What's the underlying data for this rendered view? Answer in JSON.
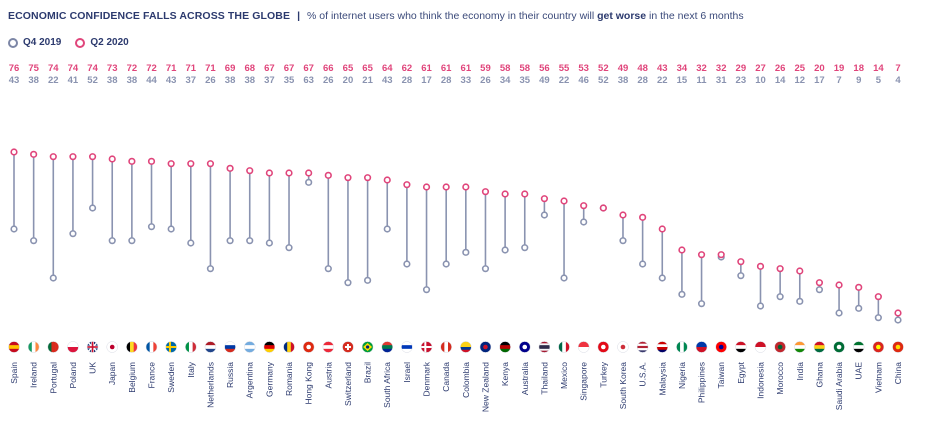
{
  "title": {
    "main": "ECONOMIC CONFIDENCE FALLS ACROSS THE GLOBE",
    "separator": "|",
    "subtitle_before": "% of internet users who think the economy in their country will",
    "subtitle_bold": "get worse",
    "subtitle_after": "in the next 6 months"
  },
  "legend": [
    {
      "label": "Q4 2019",
      "color": "#7c86a6"
    },
    {
      "label": "Q2 2020",
      "color": "#e0457b"
    }
  ],
  "colors": {
    "q4": "#8a93b0",
    "q2": "#e0457b",
    "stem": "#8a93b0",
    "text": "#2c3a6e"
  },
  "chart_data": {
    "type": "dumbbell",
    "title": "ECONOMIC CONFIDENCE FALLS ACROSS THE GLOBE",
    "ylim": [
      0,
      90
    ],
    "series": [
      {
        "name": "Q2 2020",
        "values": [
          76,
          75,
          74,
          74,
          74,
          73,
          72,
          72,
          71,
          71,
          71,
          69,
          68,
          67,
          67,
          67,
          66,
          65,
          65,
          64,
          62,
          61,
          61,
          61,
          59,
          58,
          58,
          56,
          55,
          53,
          52,
          49,
          48,
          43,
          34,
          32,
          32,
          29,
          27,
          26,
          25,
          20,
          19,
          18,
          14,
          7
        ]
      },
      {
        "name": "Q4 2019",
        "values": [
          43,
          38,
          22,
          41,
          52,
          38,
          38,
          44,
          43,
          37,
          26,
          38,
          38,
          37,
          35,
          63,
          26,
          20,
          21,
          43,
          28,
          17,
          28,
          33,
          26,
          34,
          35,
          49,
          22,
          46,
          52,
          38,
          28,
          22,
          15,
          11,
          31,
          23,
          10,
          14,
          12,
          17,
          7,
          9,
          5,
          4
        ]
      }
    ],
    "categories": [
      "Spain",
      "Ireland",
      "Portugal",
      "Poland",
      "UK",
      "Japan",
      "Belgium",
      "France",
      "Sweden",
      "Italy",
      "Netherlands",
      "Russia",
      "Argentina",
      "Germany",
      "Romania",
      "Hong Kong",
      "Austria",
      "Switzerland",
      "Brazil",
      "South Africa",
      "Israel",
      "Denmark",
      "Canada",
      "Colombia",
      "New Zealand",
      "Kenya",
      "Australia",
      "Thailand",
      "Mexico",
      "Singapore",
      "Turkey",
      "South Korea",
      "U.S.A.",
      "Malaysia",
      "Nigeria",
      "Philippines",
      "Taiwan",
      "Egypt",
      "Indonesia",
      "Morocco",
      "India",
      "Ghana",
      "Saudi Arabia",
      "UAE",
      "Vietnam",
      "China"
    ],
    "flags": [
      "spain-flag",
      "ireland-flag",
      "portugal-flag",
      "poland-flag",
      "uk-flag",
      "japan-flag",
      "belgium-flag",
      "france-flag",
      "sweden-flag",
      "italy-flag",
      "netherlands-flag",
      "russia-flag",
      "argentina-flag",
      "germany-flag",
      "romania-flag",
      "hong-kong-flag",
      "austria-flag",
      "switzerland-flag",
      "brazil-flag",
      "south-africa-flag",
      "israel-flag",
      "denmark-flag",
      "canada-flag",
      "colombia-flag",
      "new-zealand-flag",
      "kenya-flag",
      "australia-flag",
      "thailand-flag",
      "mexico-flag",
      "singapore-flag",
      "turkey-flag",
      "south-korea-flag",
      "usa-flag",
      "malaysia-flag",
      "nigeria-flag",
      "philippines-flag",
      "taiwan-flag",
      "egypt-flag",
      "indonesia-flag",
      "morocco-flag",
      "india-flag",
      "ghana-flag",
      "saudi-arabia-flag",
      "uae-flag",
      "vietnam-flag",
      "china-flag"
    ]
  }
}
